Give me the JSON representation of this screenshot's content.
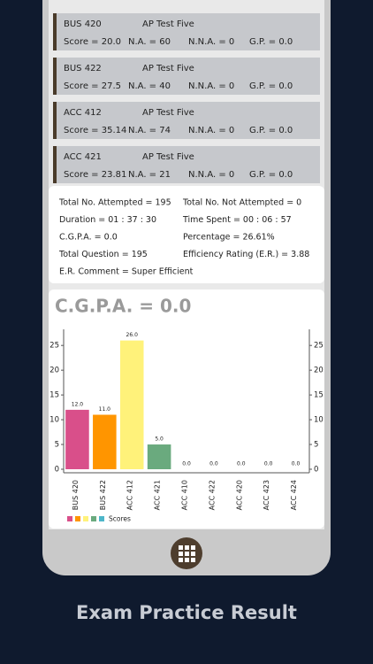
{
  "cards": [
    {
      "code": "BUS 420",
      "test": "AP Test Five",
      "score": "Score = 20.0",
      "na": "N.A. = 60",
      "nna": "N.N.A. = 0",
      "gp": "G.P. = 0.0"
    },
    {
      "code": "BUS 422",
      "test": "AP Test Five",
      "score": "Score = 27.5",
      "na": "N.A. = 40",
      "nna": "N.N.A. = 0",
      "gp": "G.P. = 0.0"
    },
    {
      "code": "ACC 412",
      "test": "AP Test Five",
      "score": "Score = 35.14",
      "na": "N.A. = 74",
      "nna": "N.N.A. = 0",
      "gp": "G.P. = 0.0"
    },
    {
      "code": "ACC 421",
      "test": "AP Test Five",
      "score": "Score = 23.81",
      "na": "N.A. = 21",
      "nna": "N.N.A. = 0",
      "gp": "G.P. = 0.0"
    }
  ],
  "summary": [
    [
      "Total No. Attempted = 195",
      "Total No. Not Attempted = 0"
    ],
    [
      "Duration = 01 : 37 : 30",
      "Time Spent = 00 : 06 : 57"
    ],
    [
      "C.G.P.A. = 0.0",
      "Percentage = 26.61%"
    ],
    [
      "Total Question = 195",
      "Efficiency Rating (E.R.) = 3.88"
    ],
    [
      "E.R. Comment = Super Efficient"
    ]
  ],
  "chart_data": {
    "type": "bar",
    "title": "C.G.P.A. = 0.0",
    "categories": [
      "BUS 420",
      "BUS 422",
      "ACC 412",
      "ACC 421",
      "ACC 410",
      "ACC 422",
      "ACC 420",
      "ACC 423",
      "ACC 424"
    ],
    "values": [
      12,
      11,
      26,
      5,
      0,
      0,
      0,
      0,
      0
    ],
    "value_labels": [
      "12.0",
      "11.0",
      "26.0",
      "5.0",
      "0.0",
      "0.0",
      "0.0",
      "0.0",
      "0.0"
    ],
    "colors": [
      "#d94f8a",
      "#ff9500",
      "#fff27a",
      "#6aaa7e",
      "#4db6c9",
      "#d94f8a",
      "#ff9500",
      "#fff27a",
      "#6aaa7e"
    ],
    "legend": "Scores",
    "ylim": [
      0,
      27
    ],
    "yticks": [
      0,
      5,
      10,
      15,
      20,
      25
    ]
  },
  "caption": "Exam Practice Result"
}
